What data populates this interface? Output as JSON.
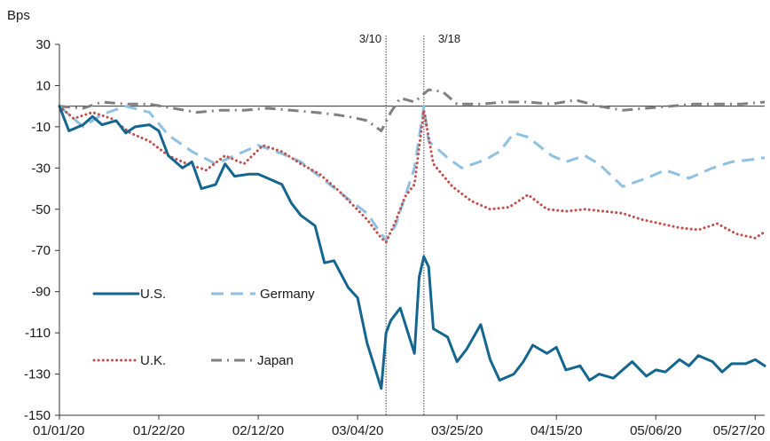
{
  "chart_data": {
    "type": "line",
    "ylabel": "Bps",
    "ylim": [
      -150,
      30
    ],
    "yticks": [
      30,
      10,
      -10,
      -30,
      -50,
      -70,
      -90,
      -110,
      -130,
      -150
    ],
    "xlim": [
      "2020-01-01",
      "2020-05-29"
    ],
    "xticks": [
      {
        "date": "2020-01-01",
        "label": "01/01/20"
      },
      {
        "date": "2020-01-22",
        "label": "01/22/20"
      },
      {
        "date": "2020-02-12",
        "label": "02/12/20"
      },
      {
        "date": "2020-03-04",
        "label": "03/04/20"
      },
      {
        "date": "2020-03-25",
        "label": "03/25/20"
      },
      {
        "date": "2020-04-15",
        "label": "04/15/20"
      },
      {
        "date": "2020-05-06",
        "label": "05/06/20"
      },
      {
        "date": "2020-05-27",
        "label": "05/27/20"
      }
    ],
    "annotations": [
      {
        "date": "2020-03-10",
        "label": "3/10"
      },
      {
        "date": "2020-03-18",
        "label": "3/18"
      }
    ],
    "legend_position": "lower-left",
    "series": [
      {
        "name": "U.S.",
        "color": "#14668f",
        "style": "solid",
        "x": [
          "2020-01-01",
          "2020-01-03",
          "2020-01-06",
          "2020-01-08",
          "2020-01-10",
          "2020-01-13",
          "2020-01-15",
          "2020-01-17",
          "2020-01-20",
          "2020-01-22",
          "2020-01-24",
          "2020-01-27",
          "2020-01-29",
          "2020-01-31",
          "2020-02-03",
          "2020-02-05",
          "2020-02-07",
          "2020-02-10",
          "2020-02-12",
          "2020-02-14",
          "2020-02-17",
          "2020-02-19",
          "2020-02-21",
          "2020-02-24",
          "2020-02-26",
          "2020-02-28",
          "2020-03-02",
          "2020-03-04",
          "2020-03-06",
          "2020-03-09",
          "2020-03-10",
          "2020-03-11",
          "2020-03-13",
          "2020-03-16",
          "2020-03-17",
          "2020-03-18",
          "2020-03-19",
          "2020-03-20",
          "2020-03-23",
          "2020-03-25",
          "2020-03-27",
          "2020-03-30",
          "2020-04-01",
          "2020-04-03",
          "2020-04-06",
          "2020-04-08",
          "2020-04-10",
          "2020-04-13",
          "2020-04-15",
          "2020-04-17",
          "2020-04-20",
          "2020-04-22",
          "2020-04-24",
          "2020-04-27",
          "2020-04-29",
          "2020-05-01",
          "2020-05-04",
          "2020-05-06",
          "2020-05-08",
          "2020-05-11",
          "2020-05-13",
          "2020-05-15",
          "2020-05-18",
          "2020-05-20",
          "2020-05-22",
          "2020-05-25",
          "2020-05-27",
          "2020-05-29"
        ],
        "values": [
          0,
          -12,
          -9,
          -5,
          -9,
          -7,
          -13,
          -10,
          -9,
          -12,
          -24,
          -30,
          -27,
          -40,
          -38,
          -28,
          -34,
          -33,
          -33,
          -35,
          -38,
          -47,
          -53,
          -58,
          -76,
          -75,
          -88,
          -93,
          -115,
          -137,
          -110,
          -104,
          -98,
          -120,
          -83,
          -73,
          -78,
          -108,
          -112,
          -124,
          -118,
          -106,
          -123,
          -133,
          -130,
          -124,
          -116,
          -120,
          -117,
          -128,
          -126,
          -133,
          -130,
          -132,
          -128,
          -124,
          -131,
          -128,
          -129,
          -123,
          -126,
          -121,
          -124,
          -129,
          -125,
          -125,
          -123,
          -126
        ]
      },
      {
        "name": "Germany",
        "color": "#8fc1e3",
        "style": "dashed",
        "x": [
          "2020-01-01",
          "2020-01-06",
          "2020-01-10",
          "2020-01-15",
          "2020-01-20",
          "2020-01-24",
          "2020-01-29",
          "2020-02-03",
          "2020-02-07",
          "2020-02-12",
          "2020-02-17",
          "2020-02-21",
          "2020-02-26",
          "2020-03-02",
          "2020-03-06",
          "2020-03-09",
          "2020-03-10",
          "2020-03-12",
          "2020-03-16",
          "2020-03-18",
          "2020-03-19",
          "2020-03-23",
          "2020-03-26",
          "2020-03-31",
          "2020-04-03",
          "2020-04-06",
          "2020-04-09",
          "2020-04-14",
          "2020-04-17",
          "2020-04-21",
          "2020-04-24",
          "2020-04-29",
          "2020-05-04",
          "2020-05-08",
          "2020-05-13",
          "2020-05-18",
          "2020-05-22",
          "2020-05-26",
          "2020-05-29"
        ],
        "values": [
          0,
          -10,
          -4,
          0,
          -3,
          -14,
          -22,
          -28,
          -24,
          -19,
          -23,
          -27,
          -36,
          -45,
          -52,
          -62,
          -65,
          -58,
          -30,
          0,
          -17,
          -25,
          -30,
          -26,
          -22,
          -13,
          -15,
          -24,
          -27,
          -24,
          -28,
          -39,
          -35,
          -31,
          -35,
          -30,
          -27,
          -26,
          -25
        ]
      },
      {
        "name": "U.K.",
        "color": "#c0504d",
        "style": "dotted",
        "x": [
          "2020-01-01",
          "2020-01-04",
          "2020-01-08",
          "2020-01-12",
          "2020-01-16",
          "2020-01-20",
          "2020-01-24",
          "2020-01-28",
          "2020-02-01",
          "2020-02-05",
          "2020-02-09",
          "2020-02-13",
          "2020-02-17",
          "2020-02-21",
          "2020-02-25",
          "2020-02-29",
          "2020-03-03",
          "2020-03-06",
          "2020-03-09",
          "2020-03-10",
          "2020-03-12",
          "2020-03-14",
          "2020-03-16",
          "2020-03-18",
          "2020-03-20",
          "2020-03-24",
          "2020-03-28",
          "2020-04-01",
          "2020-04-05",
          "2020-04-09",
          "2020-04-13",
          "2020-04-17",
          "2020-04-21",
          "2020-04-25",
          "2020-04-29",
          "2020-05-03",
          "2020-05-07",
          "2020-05-11",
          "2020-05-15",
          "2020-05-19",
          "2020-05-23",
          "2020-05-27",
          "2020-05-29"
        ],
        "values": [
          0,
          -6,
          -3,
          -6,
          -13,
          -17,
          -24,
          -28,
          -31,
          -24,
          -28,
          -19,
          -22,
          -28,
          -33,
          -41,
          -48,
          -55,
          -64,
          -66,
          -56,
          -44,
          -38,
          -2,
          -28,
          -39,
          -46,
          -50,
          -49,
          -43,
          -50,
          -51,
          -50,
          -51,
          -52,
          -55,
          -57,
          -59,
          -60,
          -57,
          -62,
          -64,
          -61
        ]
      },
      {
        "name": "Japan",
        "color": "#808080",
        "style": "dash-dot",
        "x": [
          "2020-01-01",
          "2020-01-06",
          "2020-01-10",
          "2020-01-15",
          "2020-01-20",
          "2020-01-25",
          "2020-01-30",
          "2020-02-04",
          "2020-02-09",
          "2020-02-14",
          "2020-02-19",
          "2020-02-24",
          "2020-02-28",
          "2020-03-02",
          "2020-03-06",
          "2020-03-09",
          "2020-03-11",
          "2020-03-13",
          "2020-03-16",
          "2020-03-19",
          "2020-03-22",
          "2020-03-25",
          "2020-03-30",
          "2020-04-04",
          "2020-04-09",
          "2020-04-14",
          "2020-04-19",
          "2020-04-24",
          "2020-04-29",
          "2020-05-04",
          "2020-05-09",
          "2020-05-14",
          "2020-05-19",
          "2020-05-24",
          "2020-05-29"
        ],
        "values": [
          0,
          -1,
          2,
          1,
          1,
          -1,
          -3,
          -2,
          -2,
          -1,
          -2,
          -3,
          -4,
          -5,
          -7,
          -12,
          -3,
          4,
          2,
          8,
          7,
          1,
          1,
          2,
          2,
          1,
          3,
          0,
          -2,
          -1,
          0,
          1,
          1,
          1,
          2
        ]
      }
    ]
  }
}
